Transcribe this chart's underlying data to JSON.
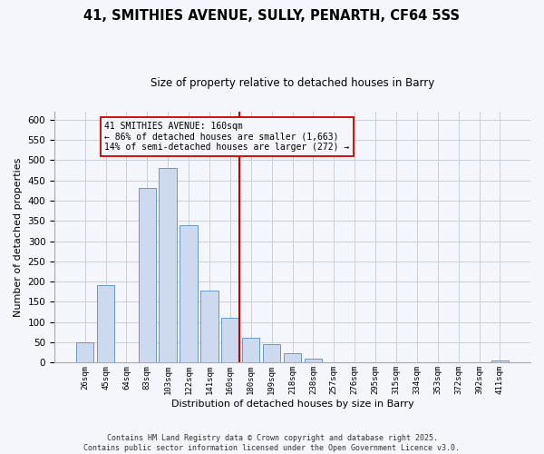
{
  "title": "41, SMITHIES AVENUE, SULLY, PENARTH, CF64 5SS",
  "subtitle": "Size of property relative to detached houses in Barry",
  "xlabel": "Distribution of detached houses by size in Barry",
  "ylabel": "Number of detached properties",
  "bar_labels": [
    "26sqm",
    "45sqm",
    "64sqm",
    "83sqm",
    "103sqm",
    "122sqm",
    "141sqm",
    "160sqm",
    "180sqm",
    "199sqm",
    "218sqm",
    "238sqm",
    "257sqm",
    "276sqm",
    "295sqm",
    "315sqm",
    "334sqm",
    "353sqm",
    "372sqm",
    "392sqm",
    "411sqm"
  ],
  "bar_values": [
    50,
    192,
    0,
    432,
    481,
    340,
    178,
    110,
    61,
    45,
    24,
    10,
    0,
    0,
    0,
    0,
    0,
    0,
    0,
    0,
    5
  ],
  "bar_color": "#ccd9ee",
  "bar_edge_color": "#6699cc",
  "highlight_index": 7,
  "highlight_line_color": "#cc0000",
  "annotation_line1": "41 SMITHIES AVENUE: 160sqm",
  "annotation_line2": "← 86% of detached houses are smaller (1,663)",
  "annotation_line3": "14% of semi-detached houses are larger (272) →",
  "annotation_box_edge": "#cc0000",
  "ylim": [
    0,
    620
  ],
  "yticks": [
    0,
    50,
    100,
    150,
    200,
    250,
    300,
    350,
    400,
    450,
    500,
    550,
    600
  ],
  "footer_line1": "Contains HM Land Registry data © Crown copyright and database right 2025.",
  "footer_line2": "Contains public sector information licensed under the Open Government Licence v3.0.",
  "background_color": "#f4f6fb",
  "grid_color": "#c8d0dc",
  "title_fontsize": 10.5,
  "subtitle_fontsize": 8.5
}
